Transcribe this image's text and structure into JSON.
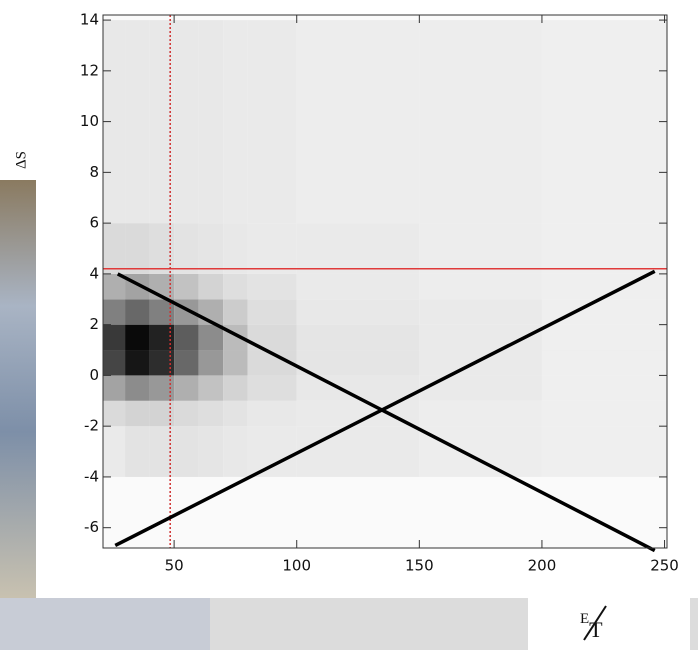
{
  "chart_data": {
    "type": "heatmap",
    "x_label": "E",
    "x_label_sub": "T",
    "y_label": "ΔS",
    "xlim": [
      21,
      251
    ],
    "ylim": [
      -6.8,
      14.2
    ],
    "xticks": [
      50,
      100,
      150,
      200,
      250
    ],
    "yticks": [
      -6,
      -4,
      -2,
      0,
      2,
      4,
      6,
      8,
      10,
      12,
      14
    ],
    "xbins": [
      21,
      30,
      40,
      50,
      60,
      70,
      80,
      100,
      150,
      200,
      251
    ],
    "ybins": [
      -4,
      -2,
      -1,
      0,
      1,
      2,
      3,
      4,
      6,
      14
    ],
    "z": [
      [
        0.05,
        0.08,
        0.08,
        0.08,
        0.07,
        0.06,
        0.05,
        0.05,
        0.04,
        0.03
      ],
      [
        0.12,
        0.15,
        0.15,
        0.12,
        0.1,
        0.08,
        0.06,
        0.05,
        0.04,
        0.03
      ],
      [
        0.35,
        0.45,
        0.4,
        0.3,
        0.22,
        0.15,
        0.1,
        0.06,
        0.05,
        0.03
      ],
      [
        0.75,
        0.95,
        0.85,
        0.6,
        0.4,
        0.25,
        0.12,
        0.07,
        0.05,
        0.03
      ],
      [
        0.8,
        1.0,
        0.9,
        0.65,
        0.45,
        0.25,
        0.12,
        0.07,
        0.05,
        0.03
      ],
      [
        0.5,
        0.6,
        0.5,
        0.4,
        0.3,
        0.18,
        0.1,
        0.06,
        0.05,
        0.03
      ],
      [
        0.3,
        0.35,
        0.3,
        0.22,
        0.15,
        0.1,
        0.08,
        0.05,
        0.04,
        0.03
      ],
      [
        0.12,
        0.12,
        0.1,
        0.08,
        0.07,
        0.06,
        0.05,
        0.05,
        0.04,
        0.03
      ],
      [
        0.06,
        0.06,
        0.06,
        0.06,
        0.06,
        0.05,
        0.05,
        0.04,
        0.04,
        0.03
      ]
    ],
    "hline": {
      "value": 4.2,
      "color": "#e03a3a"
    },
    "vline": {
      "value": 48.4,
      "color": "#d03030"
    },
    "lines": [
      {
        "color": "#000000",
        "x": [
          27,
          246
        ],
        "y": [
          4,
          -6.9
        ]
      },
      {
        "color": "#000000",
        "x": [
          26,
          246
        ],
        "y": [
          -6.7,
          4.1
        ]
      }
    ]
  }
}
